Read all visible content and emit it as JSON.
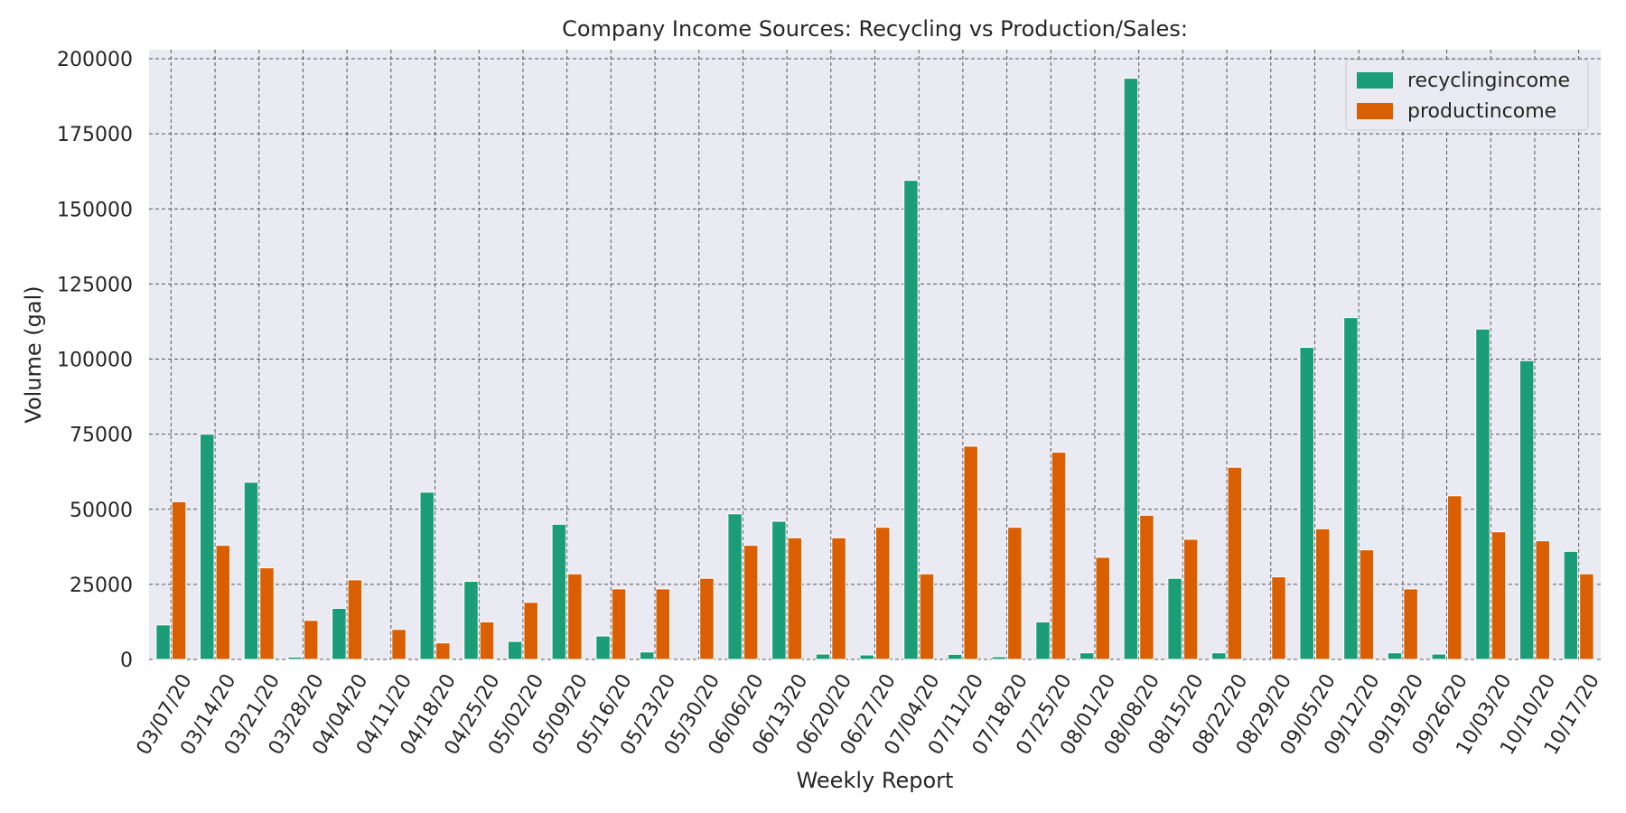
{
  "chart_data": {
    "type": "bar",
    "title": "Company Income Sources: Recycling vs Production/Sales:",
    "xlabel": "Weekly Report",
    "ylabel": "Volume (gal)",
    "ylim": [
      0,
      200000
    ],
    "yticks": [
      "0",
      "25000",
      "50000",
      "75000",
      "100000",
      "125000",
      "150000",
      "175000",
      "200000"
    ],
    "grid": true,
    "legend_position": "top-right",
    "categories": [
      "03/07/20",
      "03/14/20",
      "03/21/20",
      "03/28/20",
      "04/04/20",
      "04/11/20",
      "04/18/20",
      "04/25/20",
      "05/02/20",
      "05/09/20",
      "05/16/20",
      "05/23/20",
      "05/30/20",
      "06/06/20",
      "06/13/20",
      "06/20/20",
      "06/27/20",
      "07/04/20",
      "07/11/20",
      "07/18/20",
      "07/25/20",
      "08/01/20",
      "08/08/20",
      "08/15/20",
      "08/22/20",
      "08/29/20",
      "09/05/20",
      "09/12/20",
      "09/19/20",
      "09/26/20",
      "10/03/20",
      "10/10/20",
      "10/17/20"
    ],
    "series": [
      {
        "name": "recyclingincome",
        "color": "#1b9e77",
        "values": [
          11500,
          75000,
          59000,
          800,
          17000,
          0,
          55700,
          26000,
          6000,
          45000,
          7800,
          2500,
          0,
          48500,
          46000,
          1800,
          1500,
          159500,
          1700,
          900,
          12500,
          2200,
          193500,
          27000,
          2200,
          0,
          103900,
          113800,
          2200,
          1800,
          110000,
          99500,
          36000
        ]
      },
      {
        "name": "productincome",
        "color": "#d95f02",
        "values": [
          52500,
          38000,
          30500,
          13000,
          26500,
          10000,
          5500,
          12500,
          19000,
          28500,
          23500,
          23500,
          27000,
          38000,
          40500,
          40500,
          44000,
          28500,
          71000,
          44000,
          69000,
          34000,
          48000,
          40000,
          64000,
          27500,
          43500,
          36500,
          23500,
          54500,
          42500,
          39500,
          28500
        ]
      }
    ]
  }
}
